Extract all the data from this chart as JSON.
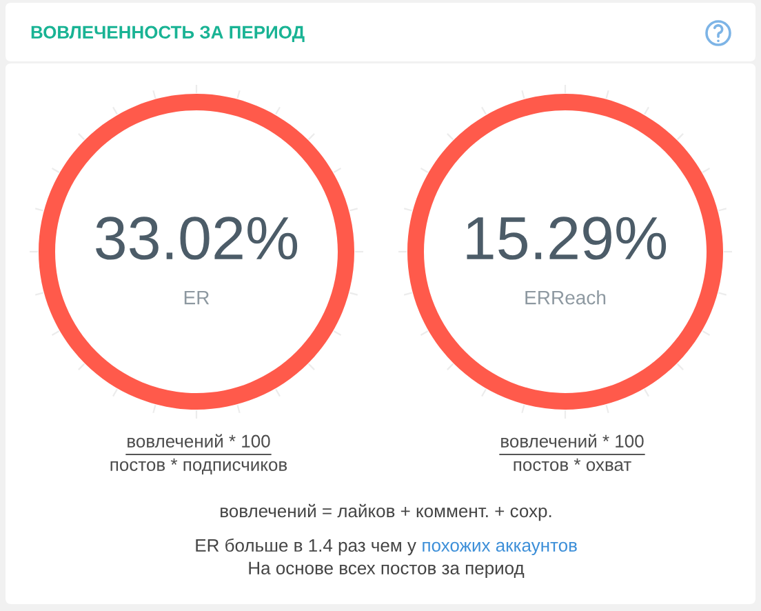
{
  "chart_data": {
    "type": "other",
    "title": "ВОВЛЕЧЕННОСТЬ ЗА ПЕРИОД",
    "categories": [
      "ER",
      "ERReach"
    ],
    "values": [
      33.02,
      15.29
    ],
    "value_labels": [
      "33.02%",
      "15.29%"
    ],
    "colors": [
      "#ff5a4b",
      "#ff5a4b"
    ],
    "annotations": [
      "вовлечений * 100",
      "постов * подписчиков",
      "вовлечений * 100",
      "постов * охват",
      "вовлечений = лайков + коммент. + сохр.",
      "ER больше в 1.4 раз чем у",
      "похожих аккаунтов",
      "На основе всех постов за период"
    ]
  }
}
